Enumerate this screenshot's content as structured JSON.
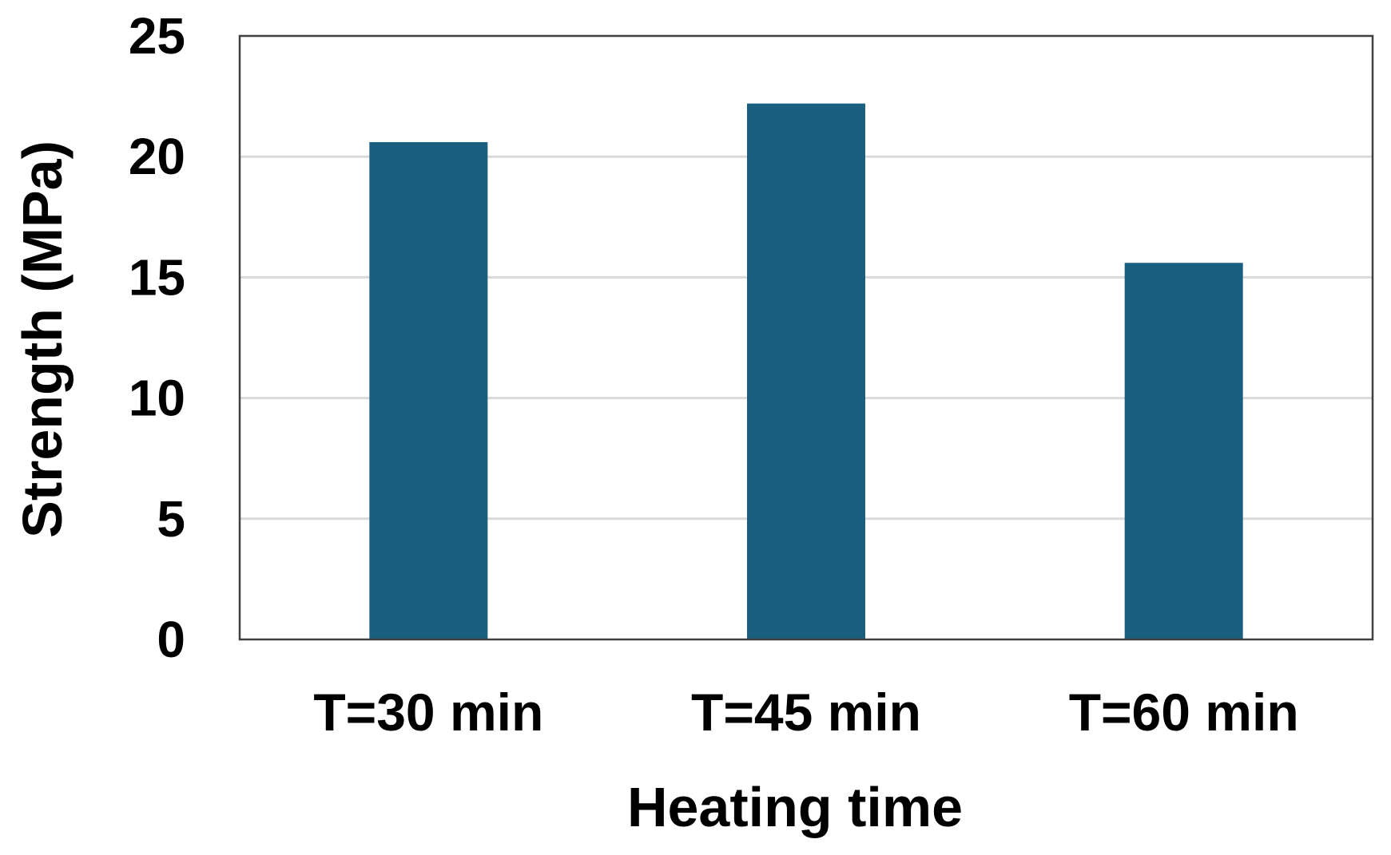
{
  "chart_data": {
    "type": "bar",
    "title": "",
    "xlabel": "Heating time",
    "ylabel": "Strength (MPa)",
    "categories": [
      "T=30 min",
      "T=45 min",
      "T=60 min"
    ],
    "values": [
      20.6,
      22.2,
      15.6
    ],
    "ylim": [
      0,
      25
    ],
    "yticks": [
      0,
      5,
      10,
      15,
      20,
      25
    ],
    "ytick_labels": [
      "0",
      "5",
      "10",
      "15",
      "20",
      "25"
    ],
    "grid": true,
    "legend": "none",
    "colors": {
      "bar": "#1a5e80",
      "grid": "#d9d9d9",
      "frame": "#404040"
    }
  }
}
